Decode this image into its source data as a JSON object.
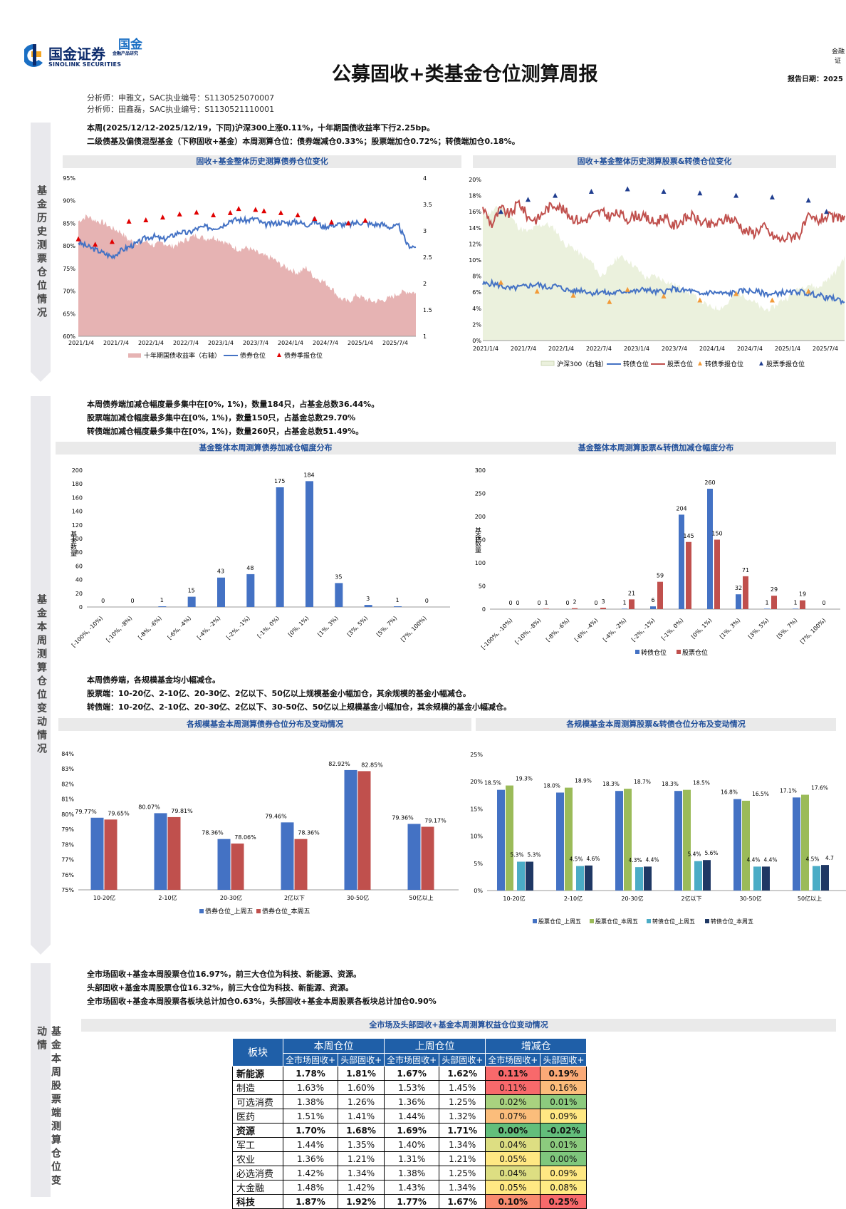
{
  "header": {
    "logo_cn": "国金证券",
    "logo_en": "SINOLINK SECURITIES",
    "badge_cn": "国金",
    "badge_sub": "金融产品研究",
    "title": "公募固收+类基金仓位测算周报",
    "corner_right_1": "金融",
    "corner_right_2": "证",
    "report_date": "报告日期：2025"
  },
  "analysts": [
    "分析师：申雅文，SAC执业编号：S1130525070007",
    "分析师：田鑫磊，SAC执业编号：S1130521110001"
  ],
  "sections": {
    "s1": "基金历史测票仓位情况",
    "s2": "基金本周测算仓位变动情况",
    "s3": "基金本周股票端测算仓位变动情"
  },
  "summary1": [
    "本周(2025/12/12-2025/12/19，下同)沪深300上涨0.11%，十年期国债收益率下行2.25bp。",
    "二级债基及偏债混型基金（下称固收+基金）本周测算仓位：债券端减仓0.33%；股票端加仓0.72%；转债端加仓0.18%。"
  ],
  "summary2": [
    "本周债券端加减仓幅度最多集中在[0%, 1%)，数量184只，占基金总数36.44%。",
    "股票端加减仓幅度最多集中在[0%, 1%)，数量150只，占基金总数29.70%",
    "转债端加减仓幅度最多集中在[0%, 1%)，数量260只，占基金总数51.49%。"
  ],
  "summary3": [
    "本周债券端，各规模基金均小幅减仓。",
    "股票端：10-20亿、2-10亿、20-30亿、2亿以下、50亿以上规模基金小幅加仓，其余规模的基金小幅减仓。",
    "转债端：10-20亿、2-10亿、20-30亿、2亿以下、30-50亿、50亿以上规模基金小幅加仓，其余规模的基金小幅减仓。"
  ],
  "summary4": [
    "全市场固收+基金本周股票仓位16.97%，前三大仓位为科技、新能源、资源。",
    "头部固收+基金本周股票仓位16.32%，前三大仓位为科技、新能源、资源。",
    "全市场固收+基金本周股票各板块总计加仓0.63%，头部固收+基金本周股票各板块总计加仓0.90%"
  ],
  "colors": {
    "blue": "#4472c4",
    "red": "#c0504d",
    "green": "#9bbb59",
    "teal": "#4bacc6",
    "navy": "#1f3864",
    "pink": "#e6b3b3",
    "lightgreen": "#ebf1dd"
  },
  "chart_data": [
    {
      "id": "c1",
      "type": "area",
      "title": "固收+基金整体历史测算债券仓位变化",
      "y_left_ticks": [
        "95%",
        "90%",
        "85%",
        "80%",
        "75%",
        "70%",
        "65%",
        "60%"
      ],
      "y_right_ticks": [
        "4",
        "3.5",
        "3",
        "2.5",
        "2",
        "1.5",
        "1"
      ],
      "ylim_left": [
        60,
        95
      ],
      "ylim_right": [
        1,
        4
      ],
      "x_ticks": [
        "2021/1/4",
        "2021/7/4",
        "2022/1/4",
        "2022/7/4",
        "2023/1/4",
        "2023/7/4",
        "2024/1/4",
        "2024/7/4",
        "2025/1/4",
        "2025/7/4"
      ],
      "series": [
        {
          "name": "十年期国债收益率（右轴）",
          "type": "area",
          "values": [
            3.18,
            3.28,
            3.2,
            3.15,
            3.05,
            2.98,
            2.82,
            2.78,
            2.8,
            2.72,
            2.78,
            2.7,
            2.76,
            2.85,
            2.92,
            2.85,
            2.88,
            2.82,
            2.72,
            2.65,
            2.68,
            2.6,
            2.52,
            2.48,
            2.35,
            2.28,
            2.2,
            2.3,
            2.12,
            2.05,
            1.92,
            1.72,
            1.65,
            1.78,
            1.7,
            1.66,
            1.68,
            1.73,
            1.82,
            1.85,
            1.83
          ]
        },
        {
          "name": "债券仓位",
          "type": "line",
          "values": [
            80.8,
            79.9,
            79.2,
            78.4,
            77.6,
            78.9,
            79.8,
            80.6,
            81.8,
            82.1,
            81.4,
            82.1,
            83.1,
            82.8,
            83.8,
            84.2,
            84.0,
            84.4,
            85.7,
            85.8,
            85.6,
            86.1,
            84.7,
            84.9,
            85.2,
            85.1,
            85.4,
            84.6,
            85.5,
            84.2,
            84.6,
            84.8,
            84.6,
            85.2,
            85.1,
            84.7,
            84.8,
            84.1,
            84.4,
            80.2,
            79.7
          ]
        },
        {
          "name": "债券季报仓位",
          "type": "scatter",
          "values": [
            [
              0,
              81.5
            ],
            [
              2,
              80.3
            ],
            [
              4,
              80.9
            ],
            [
              6,
              85.4
            ],
            [
              8,
              85.7
            ],
            [
              10,
              86.3
            ],
            [
              12,
              87.0
            ],
            [
              14,
              87.4
            ],
            [
              16,
              86.8
            ],
            [
              18,
              87.3
            ],
            [
              19,
              88.2
            ],
            [
              21,
              88.0
            ],
            [
              22,
              87.7
            ],
            [
              24,
              87.3
            ],
            [
              26,
              86.8
            ],
            [
              28,
              86.0
            ],
            [
              30,
              85.2
            ],
            [
              32,
              85.0
            ],
            [
              34,
              85.6
            ]
          ]
        }
      ],
      "legend": [
        "十年期国债收益率（右轴）",
        "债券仓位",
        "债券季报仓位"
      ]
    },
    {
      "id": "c2",
      "type": "area",
      "title": "固收+基金整体历史测算股票&转债仓位变化",
      "y_ticks": [
        "20%",
        "18%",
        "16%",
        "14%",
        "12%",
        "10%",
        "8%",
        "6%",
        "4%",
        "2%",
        "0%"
      ],
      "ylim": [
        0,
        20
      ],
      "x_ticks": [
        "2021/1/4",
        "2021/7/4",
        "2022/1/4",
        "2022/7/4",
        "2023/1/4",
        "2023/7/4",
        "2024/1/4",
        "2024/7/4",
        "2025/1/4",
        "2025/7/4"
      ],
      "series": [
        {
          "name": "沪深300（右轴）",
          "type": "area",
          "values": [
            15.5,
            16.0,
            16.8,
            15.5,
            14.0,
            13.5,
            14.2,
            14.5,
            13.8,
            12.0,
            11.5,
            10.5,
            9.8,
            8.0,
            9.0,
            10.5,
            10.0,
            9.0,
            7.8,
            8.0,
            7.5,
            7.0,
            6.5,
            5.8,
            5.0,
            4.2,
            4.0,
            4.5,
            6.0,
            5.5,
            4.8,
            3.8,
            4.0,
            5.0,
            5.5,
            6.5,
            7.0,
            6.5,
            7.5,
            8.5,
            10.5
          ]
        },
        {
          "name": "转债仓位",
          "type": "line",
          "values": [
            7.0,
            7.1,
            6.8,
            6.4,
            6.6,
            6.8,
            7.0,
            6.6,
            6.8,
            6.4,
            6.1,
            6.3,
            5.9,
            6.1,
            5.8,
            6.0,
            6.2,
            6.1,
            6.4,
            6.0,
            6.1,
            6.4,
            6.2,
            6.2,
            5.7,
            6.0,
            5.9,
            5.8,
            6.0,
            6.2,
            6.1,
            5.9,
            5.7,
            6.0,
            5.9,
            6.1,
            5.8,
            5.7,
            5.3,
            5.2,
            4.8
          ]
        },
        {
          "name": "股票仓位",
          "type": "line",
          "values": [
            16.5,
            14.4,
            16.4,
            15.6,
            17.2,
            15.3,
            15.0,
            16.3,
            17.0,
            16.1,
            15.2,
            14.8,
            15.5,
            16.0,
            15.4,
            15.8,
            15.1,
            15.6,
            15.2,
            14.6,
            15.4,
            14.2,
            14.9,
            15.5,
            14.8,
            14.3,
            14.6,
            15.2,
            14.9,
            13.6,
            13.4,
            14.2,
            13.0,
            12.5,
            13.0,
            13.2,
            15.2,
            14.9,
            15.4,
            15.1,
            15.5
          ]
        },
        {
          "name": "转债季报仓位",
          "type": "scatter",
          "values": [
            [
              2,
              7.2
            ],
            [
              6,
              6.1
            ],
            [
              10,
              5.6
            ],
            [
              14,
              4.8
            ],
            [
              16,
              6.3
            ],
            [
              20,
              5.5
            ],
            [
              24,
              5.0
            ],
            [
              28,
              5.8
            ],
            [
              32,
              5.0
            ],
            [
              36,
              6.1
            ]
          ]
        },
        {
          "name": "股票季报仓位",
          "type": "scatter",
          "values": [
            [
              2,
              16.0
            ],
            [
              5,
              17.5
            ],
            [
              8,
              18.0
            ],
            [
              12,
              18.5
            ],
            [
              16,
              18.8
            ],
            [
              20,
              18.5
            ],
            [
              24,
              18.3
            ],
            [
              28,
              18.0
            ],
            [
              32,
              17.8
            ],
            [
              36,
              17.4
            ],
            [
              38,
              16.0
            ]
          ]
        }
      ],
      "legend": [
        "沪深300（右轴）",
        "转债仓位",
        "股票仓位",
        "转债季报仓位",
        "股票季报仓位"
      ]
    },
    {
      "id": "c3",
      "type": "bar",
      "title": "基金整体本周测算债券加减仓幅度分布",
      "ylabel": "基金数量",
      "ylim": [
        0,
        200
      ],
      "y_ticks": [
        0,
        20,
        40,
        60,
        80,
        100,
        120,
        140,
        160,
        180,
        200
      ],
      "categories": [
        "[-100%, -10%)",
        "[-10%, -8%)",
        "[-8%, -6%)",
        "[-6%, -4%)",
        "[-4%, -2%)",
        "[-2%, -1%)",
        "[-1%, 0%)",
        "[0%, 1%)",
        "[1%, 3%)",
        "[3%, 5%)",
        "[5%, 7%)",
        "[7%, 100%)"
      ],
      "values": [
        0,
        0,
        1,
        15,
        43,
        48,
        175,
        184,
        35,
        3,
        1,
        0
      ],
      "labels": [
        "0",
        "0",
        "1",
        "15",
        "43",
        "48",
        "175",
        "184",
        "35",
        "3",
        "1",
        "0"
      ]
    },
    {
      "id": "c4",
      "type": "bar",
      "title": "基金整体本周测算股票&转债加减仓幅度分布",
      "ylabel": "基金数量",
      "ylim": [
        0,
        300
      ],
      "y_ticks": [
        0,
        50,
        100,
        150,
        200,
        250,
        300
      ],
      "categories": [
        "[-100%, -10%)",
        "[-10%, -8%)",
        "[-8%, -6%)",
        "[-6%, -4%)",
        "[-4%, -2%)",
        "[-2%, -1%)",
        "[-1%, 0%)",
        "[0%, 1%)",
        "[1%, 3%)",
        "[3%, 5%)",
        "[5%, 7%)",
        "[7%, 100%)"
      ],
      "series": [
        {
          "name": "转债仓位",
          "values": [
            0,
            0,
            0,
            0,
            1,
            6,
            204,
            260,
            32,
            1,
            1,
            0
          ],
          "labels": [
            "0",
            "0",
            "0",
            "0",
            "1",
            "6",
            "204",
            "260",
            "32",
            "1",
            "1",
            "0"
          ]
        },
        {
          "name": "股票仓位",
          "values": [
            0,
            1,
            2,
            3,
            21,
            59,
            145,
            150,
            71,
            29,
            19,
            0
          ],
          "labels": [
            "0",
            "1",
            "2",
            "3",
            "21",
            "59",
            "145",
            "150",
            "71",
            "29",
            "19",
            ""
          ]
        }
      ],
      "legend": [
        "转债仓位",
        "股票仓位"
      ]
    },
    {
      "id": "c5",
      "type": "bar",
      "title": "各规模基金本周测算债券仓位分布及变动情况",
      "ylim": [
        75,
        84
      ],
      "y_ticks": [
        "84%",
        "83%",
        "82%",
        "81%",
        "80%",
        "79%",
        "78%",
        "77%",
        "76%",
        "75%"
      ],
      "categories": [
        "10-20亿",
        "2-10亿",
        "20-30亿",
        "2亿以下",
        "30-50亿",
        "50亿以上"
      ],
      "series": [
        {
          "name": "债券仓位_上周五",
          "values": [
            79.77,
            80.07,
            78.36,
            79.46,
            82.92,
            79.36
          ],
          "labels": [
            "79.77%",
            "80.07%",
            "78.36%",
            "79.46%",
            "82.92%",
            "79.36%"
          ]
        },
        {
          "name": "债券仓位_本周五",
          "values": [
            79.65,
            79.81,
            78.06,
            78.36,
            82.85,
            79.17
          ],
          "labels": [
            "79.65%",
            "79.81%",
            "78.06%",
            "78.36%",
            "82.85%",
            "79.17%"
          ]
        }
      ],
      "legend": [
        "债券仓位_上周五",
        "债券仓位_本周五"
      ]
    },
    {
      "id": "c6",
      "type": "bar",
      "title": "各规模基金本周测算股票&转债仓位分布及变动情况",
      "ylim": [
        0,
        25
      ],
      "y_ticks": [
        "25%",
        "20%",
        "15%",
        "10%",
        "5%",
        "0%"
      ],
      "categories": [
        "10-20亿",
        "2-10亿",
        "20-30亿",
        "2亿以下",
        "30-50亿",
        "50亿以上"
      ],
      "series": [
        {
          "name": "股票仓位_上周五",
          "values": [
            18.5,
            18.0,
            18.3,
            18.3,
            16.8,
            17.1
          ],
          "labels": [
            "18.5%",
            "18.0%",
            "18.3%",
            "18.3%",
            "16.8%",
            "17.1%"
          ]
        },
        {
          "name": "股票仓位_本周五",
          "values": [
            19.3,
            18.9,
            18.7,
            18.5,
            16.5,
            17.6
          ],
          "labels": [
            "19.3%",
            "18.9%",
            "18.7%",
            "18.5%",
            "16.5%",
            "17.6%"
          ]
        },
        {
          "name": "转债仓位_上周五",
          "values": [
            5.3,
            4.5,
            4.3,
            5.4,
            4.4,
            4.5
          ],
          "labels": [
            "5.3%",
            "4.5%",
            "4.3%",
            "5.4%",
            "4.4%",
            "4.5%"
          ]
        },
        {
          "name": "转债仓位_本周五",
          "values": [
            5.3,
            4.6,
            4.4,
            5.6,
            4.4,
            4.7
          ],
          "labels": [
            "5.3%",
            "4.6%",
            "4.4%",
            "5.6%",
            "4.4%",
            "4.7"
          ]
        }
      ],
      "legend": [
        "股票仓位_上周五",
        "股票仓位_本周五",
        "转债仓位_上周五",
        "转债仓位_本周五"
      ]
    }
  ],
  "table": {
    "title": "全市场及头部固收+基金本周测算权益仓位变动情况",
    "h_sector": "板块",
    "h_groups": [
      "本周仓位",
      "上周仓位",
      "增减仓"
    ],
    "h_sub": [
      "全市场固收+",
      "头部固收+",
      "全市场固收+",
      "头部固收+",
      "全市场固收+",
      "头部固收+"
    ],
    "rows": [
      {
        "name": "新能源",
        "bold": true,
        "cells": [
          "1.78%",
          "1.81%",
          "1.67%",
          "1.62%",
          "0.11%",
          "0.19%"
        ],
        "c1": "#f8696b",
        "c2": "#fbaa77"
      },
      {
        "name": "制造",
        "bold": false,
        "cells": [
          "1.63%",
          "1.60%",
          "1.53%",
          "1.45%",
          "0.11%",
          "0.16%"
        ],
        "c1": "#f8696b",
        "c2": "#fcbc7b"
      },
      {
        "name": "可选消费",
        "bold": false,
        "cells": [
          "1.38%",
          "1.26%",
          "1.36%",
          "1.25%",
          "0.02%",
          "0.01%"
        ],
        "c1": "#a9d27f",
        "c2": "#8ccb7e"
      },
      {
        "name": "医药",
        "bold": false,
        "cells": [
          "1.51%",
          "1.41%",
          "1.44%",
          "1.32%",
          "0.07%",
          "0.09%"
        ],
        "c1": "#fbbd7b",
        "c2": "#ffe883"
      },
      {
        "name": "资源",
        "bold": true,
        "cells": [
          "1.70%",
          "1.68%",
          "1.69%",
          "1.71%",
          "0.00%",
          "-0.02%"
        ],
        "c1": "#63be7b",
        "c2": "#63be7b"
      },
      {
        "name": "军工",
        "bold": false,
        "cells": [
          "1.44%",
          "1.35%",
          "1.40%",
          "1.34%",
          "0.04%",
          "0.01%"
        ],
        "c1": "#ddde82",
        "c2": "#8ccb7e"
      },
      {
        "name": "农业",
        "bold": false,
        "cells": [
          "1.36%",
          "1.21%",
          "1.31%",
          "1.21%",
          "0.05%",
          "0.00%"
        ],
        "c1": "#ffe883",
        "c2": "#7fc77d"
      },
      {
        "name": "必选消费",
        "bold": false,
        "cells": [
          "1.42%",
          "1.34%",
          "1.38%",
          "1.25%",
          "0.04%",
          "0.09%"
        ],
        "c1": "#ddde82",
        "c2": "#ffe883"
      },
      {
        "name": "大金融",
        "bold": false,
        "cells": [
          "1.48%",
          "1.42%",
          "1.43%",
          "1.34%",
          "0.05%",
          "0.08%"
        ],
        "c1": "#ffe883",
        "c2": "#ffeb84"
      },
      {
        "name": "科技",
        "bold": true,
        "cells": [
          "1.87%",
          "1.92%",
          "1.77%",
          "1.67%",
          "0.10%",
          "0.25%"
        ],
        "c1": "#f98b6f",
        "c2": "#f8696b"
      }
    ]
  }
}
